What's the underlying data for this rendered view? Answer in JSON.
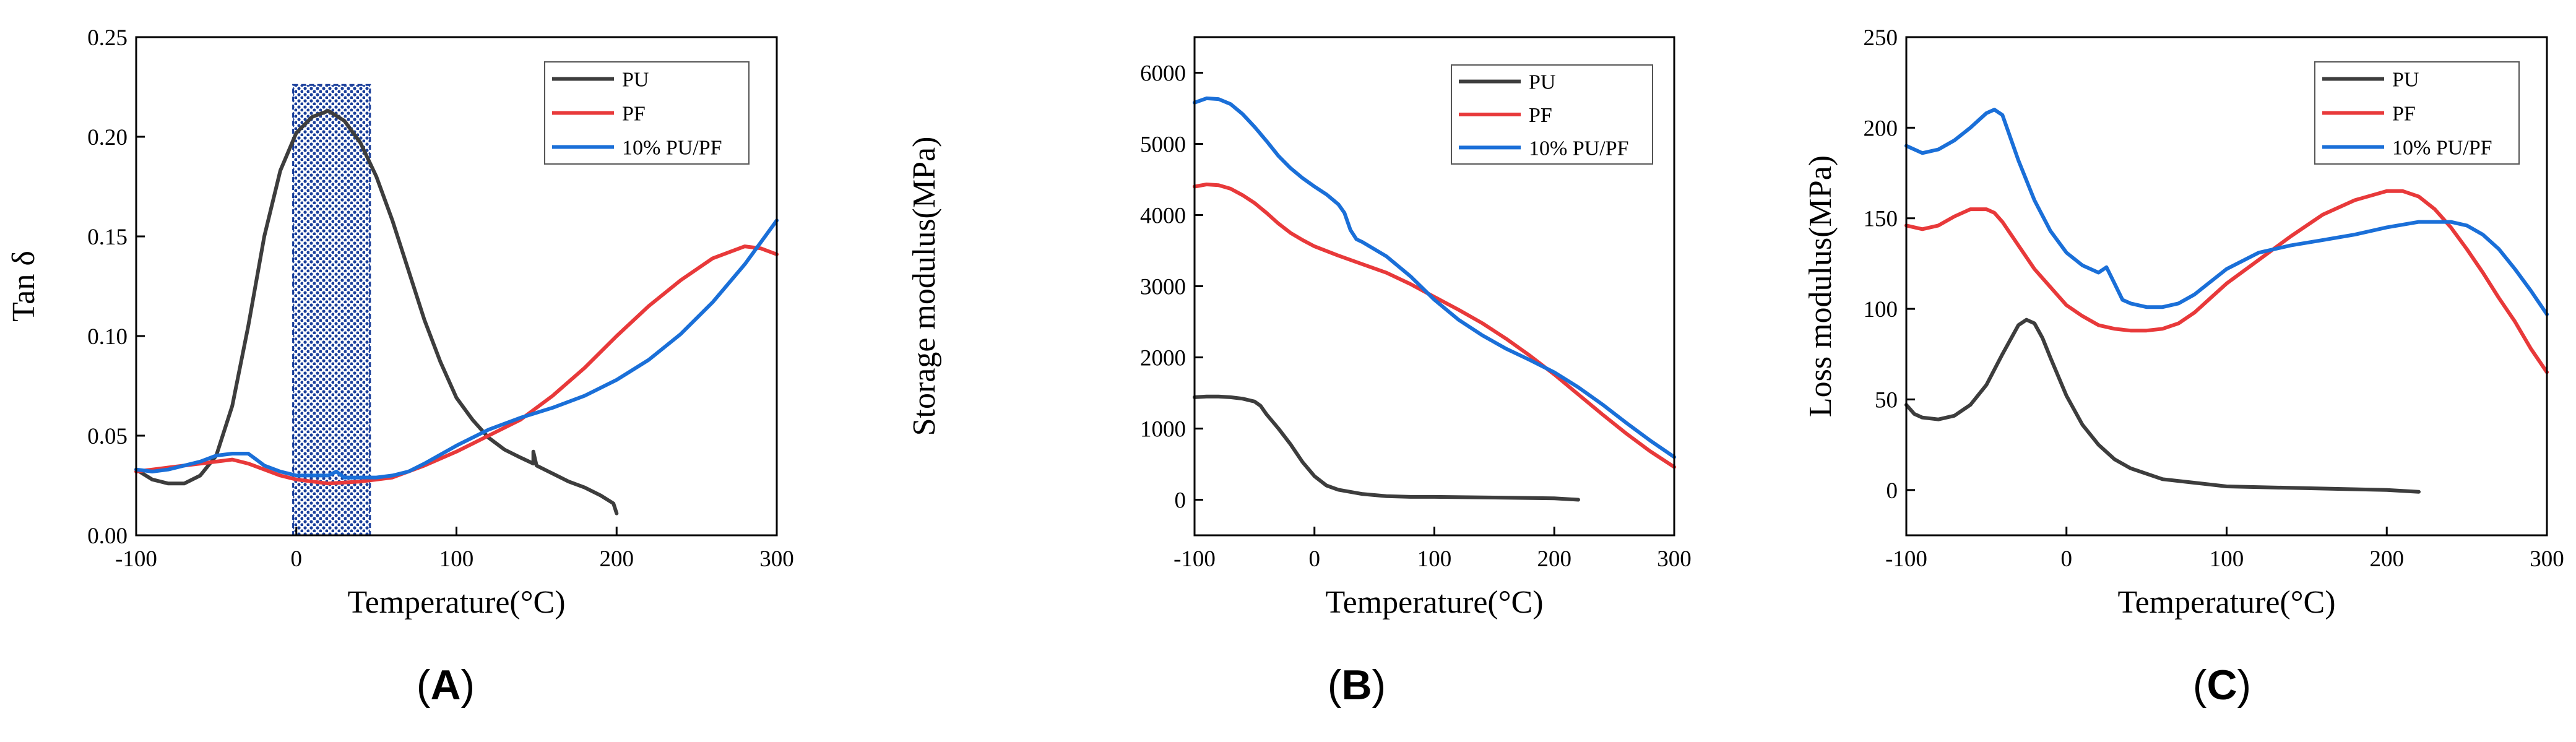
{
  "colors": {
    "pu": "#3d3d3d",
    "pf": "#e8393a",
    "blend": "#1a6fd8",
    "axis": "#000000",
    "hatch": "#1a3f9b"
  },
  "chart_data": [
    {
      "type": "line",
      "panel": "A",
      "panel_label": {
        "open": "(",
        "letter": "A",
        "close": ")"
      },
      "xlabel": "Temperature(°C)",
      "ylabel": "Tan δ",
      "xlim": [
        -100,
        300
      ],
      "ylim": [
        0,
        0.25
      ],
      "xticks": [
        -100,
        0,
        100,
        200,
        300
      ],
      "xtick_labels": [
        "-100",
        "0",
        "100",
        "200",
        "300"
      ],
      "yticks": [
        0,
        0.05,
        0.1,
        0.15,
        0.2,
        0.25
      ],
      "ytick_labels": [
        "0.00",
        "0.05",
        "0.10",
        "0.15",
        "0.20",
        "0.25"
      ],
      "legend_position": "top-right",
      "highlight_region": {
        "x": [
          -2,
          46
        ],
        "y": [
          0,
          0.226
        ]
      },
      "series": [
        {
          "name": "PU",
          "color_key": "pu",
          "x": [
            -100,
            -90,
            -80,
            -70,
            -60,
            -50,
            -40,
            -30,
            -20,
            -10,
            0,
            10,
            20,
            30,
            40,
            50,
            60,
            70,
            80,
            90,
            100,
            110,
            120,
            130,
            140,
            148,
            148,
            150,
            160,
            170,
            180,
            190,
            198,
            200
          ],
          "y": [
            0.033,
            0.028,
            0.026,
            0.026,
            0.03,
            0.04,
            0.065,
            0.105,
            0.15,
            0.183,
            0.202,
            0.21,
            0.213,
            0.208,
            0.197,
            0.18,
            0.158,
            0.133,
            0.108,
            0.087,
            0.069,
            0.058,
            0.049,
            0.043,
            0.039,
            0.036,
            0.042,
            0.035,
            0.031,
            0.027,
            0.024,
            0.02,
            0.016,
            0.011
          ]
        },
        {
          "name": "PF",
          "color_key": "pf",
          "x": [
            -100,
            -80,
            -60,
            -40,
            -30,
            -20,
            -10,
            0,
            20,
            40,
            60,
            80,
            100,
            120,
            140,
            160,
            180,
            200,
            220,
            240,
            260,
            280,
            290,
            300
          ],
          "y": [
            0.032,
            0.034,
            0.036,
            0.038,
            0.036,
            0.033,
            0.03,
            0.028,
            0.026,
            0.027,
            0.029,
            0.035,
            0.042,
            0.05,
            0.058,
            0.07,
            0.084,
            0.1,
            0.115,
            0.128,
            0.139,
            0.145,
            0.144,
            0.141
          ]
        },
        {
          "name": "10% PU/PF",
          "color_key": "blend",
          "x": [
            -100,
            -90,
            -80,
            -70,
            -60,
            -50,
            -40,
            -35,
            -30,
            -25,
            -20,
            -10,
            0,
            10,
            20,
            25,
            30,
            40,
            50,
            60,
            70,
            80,
            100,
            120,
            140,
            160,
            180,
            200,
            220,
            240,
            260,
            280,
            300
          ],
          "y": [
            0.033,
            0.032,
            0.033,
            0.035,
            0.037,
            0.04,
            0.041,
            0.041,
            0.041,
            0.038,
            0.035,
            0.032,
            0.03,
            0.03,
            0.03,
            0.032,
            0.029,
            0.029,
            0.029,
            0.03,
            0.032,
            0.036,
            0.045,
            0.053,
            0.059,
            0.064,
            0.07,
            0.078,
            0.088,
            0.101,
            0.117,
            0.136,
            0.158
          ]
        }
      ]
    },
    {
      "type": "line",
      "panel": "B",
      "panel_label": {
        "open": "(",
        "letter": "B",
        "close": ")"
      },
      "xlabel": "Temperature(°C)",
      "ylabel": "Storage modulus(MPa)",
      "xlim": [
        -100,
        300
      ],
      "ylim": [
        -500,
        6500
      ],
      "xticks": [
        -100,
        0,
        100,
        200,
        300
      ],
      "xtick_labels": [
        "-100",
        "0",
        "100",
        "200",
        "300"
      ],
      "yticks": [
        0,
        1000,
        2000,
        3000,
        4000,
        5000,
        6000
      ],
      "ytick_labels": [
        "0",
        "1000",
        "2000",
        "3000",
        "4000",
        "5000",
        "6000"
      ],
      "legend_position": "top-right",
      "series": [
        {
          "name": "PU",
          "color_key": "pu",
          "x": [
            -100,
            -90,
            -80,
            -70,
            -60,
            -50,
            -45,
            -40,
            -30,
            -20,
            -10,
            0,
            10,
            20,
            40,
            60,
            80,
            100,
            150,
            200,
            220
          ],
          "y": [
            1440,
            1450,
            1450,
            1440,
            1420,
            1380,
            1320,
            1200,
            1000,
            780,
            530,
            330,
            200,
            140,
            80,
            50,
            40,
            40,
            30,
            20,
            0
          ]
        },
        {
          "name": "PF",
          "color_key": "pf",
          "x": [
            -100,
            -90,
            -80,
            -70,
            -60,
            -50,
            -40,
            -30,
            -20,
            -10,
            0,
            20,
            40,
            60,
            80,
            100,
            120,
            140,
            160,
            180,
            200,
            220,
            240,
            260,
            280,
            300
          ],
          "y": [
            4400,
            4430,
            4420,
            4370,
            4280,
            4170,
            4030,
            3880,
            3750,
            3650,
            3560,
            3430,
            3310,
            3190,
            3030,
            2850,
            2670,
            2480,
            2260,
            2020,
            1760,
            1480,
            1200,
            930,
            680,
            460
          ]
        },
        {
          "name": "10% PU/PF",
          "color_key": "blend",
          "x": [
            -100,
            -90,
            -80,
            -70,
            -60,
            -50,
            -40,
            -30,
            -20,
            -10,
            0,
            10,
            20,
            25,
            30,
            35,
            40,
            60,
            80,
            100,
            120,
            140,
            160,
            180,
            200,
            220,
            240,
            260,
            280,
            300
          ],
          "y": [
            5580,
            5640,
            5630,
            5560,
            5420,
            5240,
            5040,
            4830,
            4660,
            4520,
            4400,
            4290,
            4150,
            4030,
            3790,
            3660,
            3620,
            3420,
            3140,
            2810,
            2530,
            2310,
            2120,
            1960,
            1790,
            1580,
            1340,
            1080,
            830,
            600
          ]
        }
      ]
    },
    {
      "type": "line",
      "panel": "C",
      "panel_label": {
        "open": "(",
        "letter": "C",
        "close": ")"
      },
      "xlabel": "Temperature(°C)",
      "ylabel": "Loss modulus(MPa)",
      "xlim": [
        -100,
        300
      ],
      "ylim": [
        -25,
        250
      ],
      "xticks": [
        -100,
        0,
        100,
        200,
        300
      ],
      "xtick_labels": [
        "-100",
        "0",
        "100",
        "200",
        "300"
      ],
      "yticks": [
        0,
        50,
        100,
        150,
        200,
        250
      ],
      "ytick_labels": [
        "0",
        "50",
        "100",
        "150",
        "200",
        "250"
      ],
      "legend_position": "top-right",
      "series": [
        {
          "name": "PU",
          "color_key": "pu",
          "x": [
            -100,
            -95,
            -90,
            -80,
            -70,
            -60,
            -50,
            -40,
            -30,
            -25,
            -20,
            -15,
            -10,
            0,
            10,
            20,
            30,
            40,
            60,
            80,
            100,
            150,
            200,
            220
          ],
          "y": [
            47,
            42,
            40,
            39,
            41,
            47,
            58,
            75,
            91,
            94,
            92,
            84,
            73,
            52,
            36,
            25,
            17,
            12,
            6,
            4,
            2,
            1,
            0,
            -1
          ]
        },
        {
          "name": "PF",
          "color_key": "pf",
          "x": [
            -100,
            -90,
            -80,
            -70,
            -60,
            -50,
            -45,
            -40,
            -30,
            -20,
            -10,
            0,
            10,
            20,
            30,
            40,
            50,
            60,
            70,
            80,
            90,
            100,
            120,
            140,
            160,
            180,
            200,
            210,
            220,
            230,
            240,
            250,
            260,
            270,
            280,
            290,
            300
          ],
          "y": [
            146,
            144,
            146,
            151,
            155,
            155,
            153,
            148,
            135,
            122,
            112,
            102,
            96,
            91,
            89,
            88,
            88,
            89,
            92,
            98,
            106,
            114,
            127,
            140,
            152,
            160,
            165,
            165,
            162,
            155,
            145,
            133,
            120,
            106,
            93,
            78,
            65
          ]
        },
        {
          "name": "10% PU/PF",
          "color_key": "blend",
          "x": [
            -100,
            -90,
            -80,
            -70,
            -60,
            -50,
            -45,
            -40,
            -30,
            -20,
            -10,
            0,
            10,
            20,
            25,
            30,
            35,
            40,
            50,
            60,
            70,
            80,
            90,
            100,
            120,
            140,
            160,
            180,
            200,
            220,
            240,
            250,
            260,
            270,
            280,
            290,
            300
          ],
          "y": [
            190,
            186,
            188,
            193,
            200,
            208,
            210,
            207,
            182,
            160,
            143,
            131,
            124,
            120,
            123,
            114,
            105,
            103,
            101,
            101,
            103,
            108,
            115,
            122,
            131,
            135,
            138,
            141,
            145,
            148,
            148,
            146,
            141,
            133,
            122,
            110,
            97
          ]
        }
      ]
    }
  ]
}
